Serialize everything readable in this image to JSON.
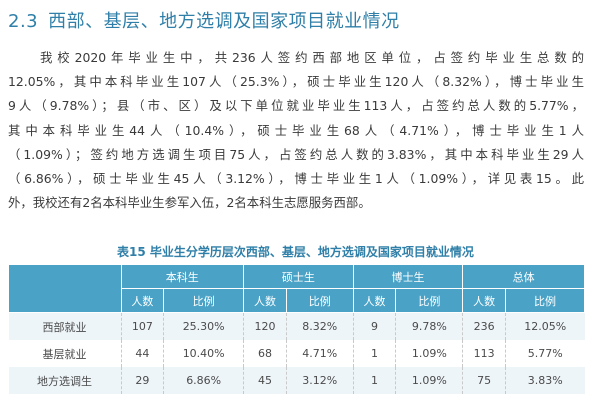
{
  "section": {
    "number": "2.3",
    "title": "西部、基层、地方选调及国家项目就业情况"
  },
  "paragraph": [
    "我校2020年毕业生中，共236人签约西部地区单位，占签约毕业生总数的",
    "12.05%，其中本科毕业生107人（25.3%），硕士毕业生120人（8.32%），博士毕业生",
    "9人（9.78%）；县（市、区）及以下单位就业毕业生113人，占签约总人数的5.77%，",
    "其中本科毕业生44人（10.4%），硕士毕业生68人（4.71%），博士毕业生1人",
    "（1.09%）；签约地方选调生项目75人，占签约总人数的3.83%，其中本科毕业生29人",
    "（6.86%），硕士毕业生45人（3.12%），博士毕业生1人（1.09%），详见表15。此",
    "外，我校还有2名本科毕业生参军入伍，2名本科生志愿服务西部。"
  ],
  "table": {
    "caption": "表15 毕业生分学历层次西部、基层、地方选调及国家项目就业情况",
    "groups": [
      "本科生",
      "硕士生",
      "博士生",
      "总体"
    ],
    "sub": [
      "人数",
      "比例"
    ],
    "rows": [
      {
        "label": "西部就业",
        "cells": [
          "107",
          "25.30%",
          "120",
          "8.32%",
          "9",
          "9.78%",
          "236",
          "12.05%"
        ]
      },
      {
        "label": "基层就业",
        "cells": [
          "44",
          "10.40%",
          "68",
          "4.71%",
          "1",
          "1.09%",
          "113",
          "5.77%"
        ]
      },
      {
        "label": "地方选调生",
        "cells": [
          "29",
          "6.86%",
          "45",
          "3.12%",
          "1",
          "1.09%",
          "75",
          "3.83%"
        ]
      }
    ]
  }
}
